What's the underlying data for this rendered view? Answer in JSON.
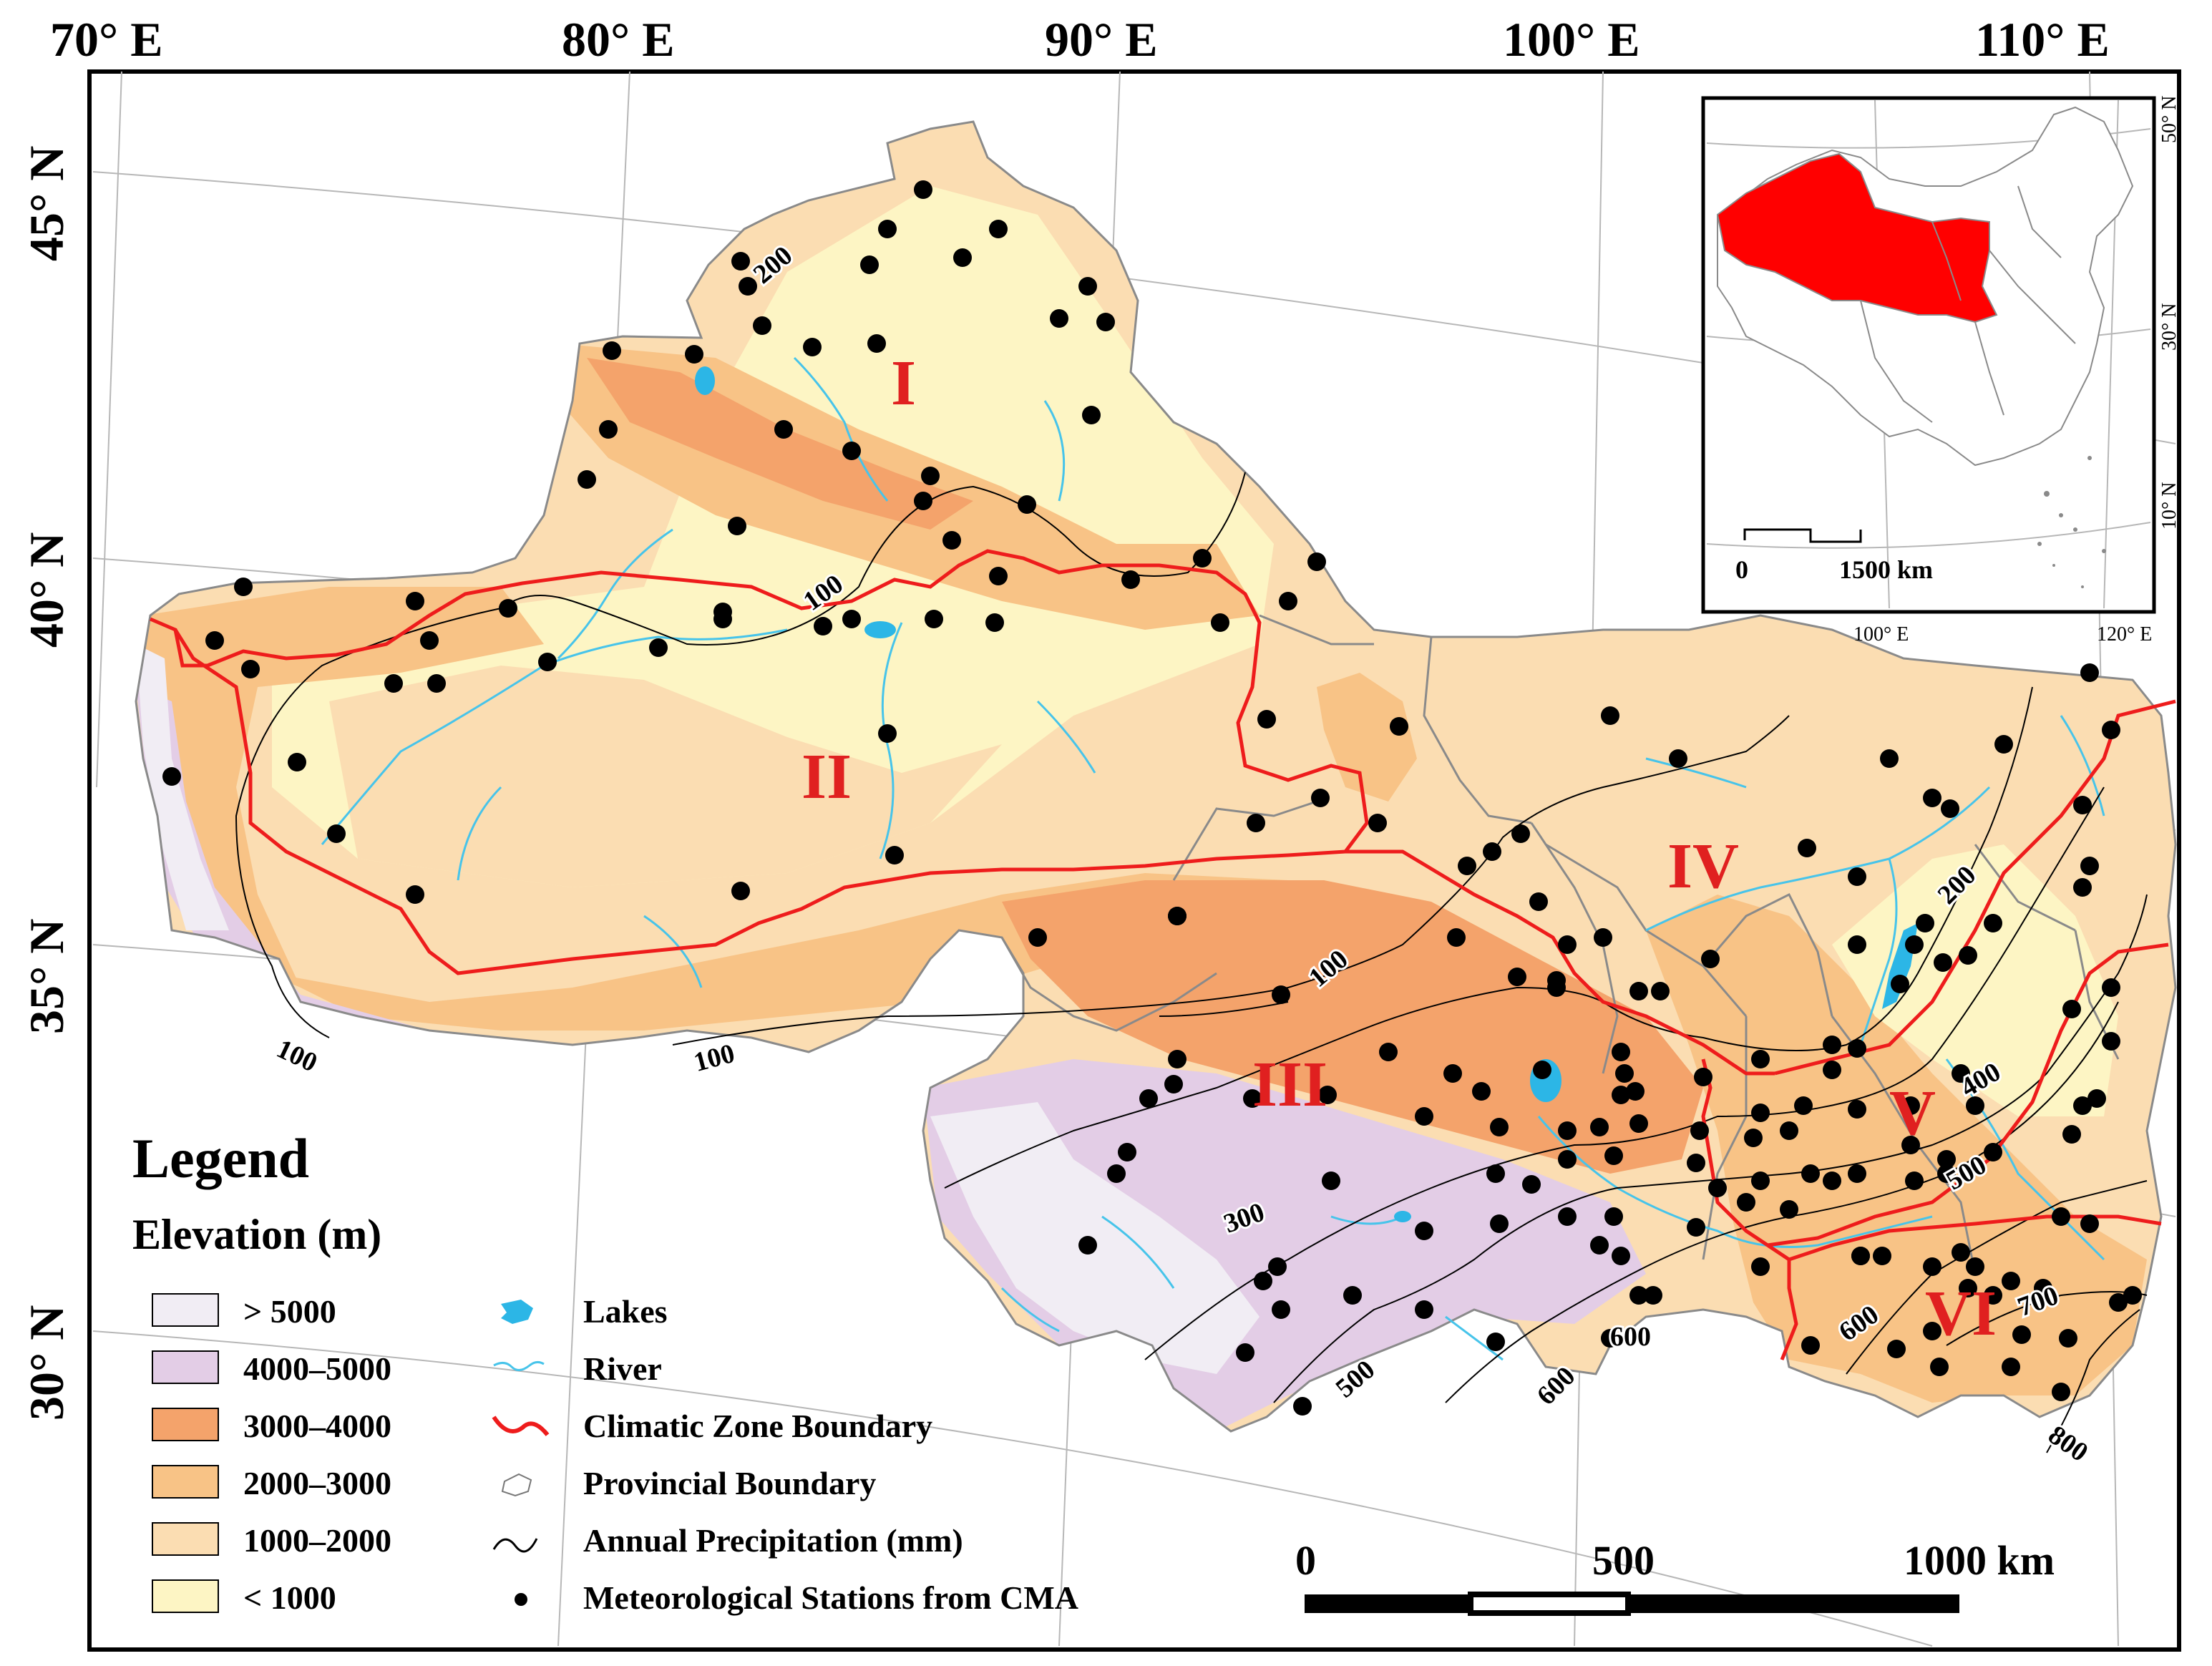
{
  "colors": {
    "gt5000": "#f1edf4",
    "e4000_5000": "#e3cde6",
    "e3000_4000": "#f4a36b",
    "e2000_3000": "#f8c386",
    "e1000_2000": "#fbddb2",
    "lt1000": "#fdf5c4",
    "lake": "#2cb6e6",
    "river": "#47c4ea",
    "zone_boundary": "#ee1c1c",
    "zone_label": "#e02020"
  },
  "top_lon_labels": [
    "70° E",
    "80° E",
    "90° E",
    "100° E",
    "110° E"
  ],
  "left_lat_labels": [
    "45° N",
    "40° N",
    "35° N",
    "30° N"
  ],
  "zone_labels": [
    "I",
    "II",
    "III",
    "IV",
    "V",
    "VI"
  ],
  "isohyet_labels": [
    "200",
    "100",
    "100",
    "100",
    "100",
    "200",
    "300",
    "400",
    "500",
    "500",
    "600",
    "600",
    "600",
    "700",
    "800"
  ],
  "legend": {
    "title": "Legend",
    "elevation_title": "Elevation (m)",
    "elevation_classes": [
      "> 5000",
      "4000–5000",
      "3000–4000",
      "2000–3000",
      "1000–2000",
      "< 1000"
    ],
    "symbols": [
      {
        "icon": "lake-icon",
        "label": "Lakes"
      },
      {
        "icon": "river-icon",
        "label": "River"
      },
      {
        "icon": "climatic-zone-boundary-icon",
        "label": "Climatic Zone Boundary"
      },
      {
        "icon": "provincial-boundary-icon",
        "label": "Provincial Boundary"
      },
      {
        "icon": "precipitation-isoline-icon",
        "label": "Annual Precipitation (mm)"
      },
      {
        "icon": "station-dot-icon",
        "label": "Meteorological Stations from CMA"
      }
    ]
  },
  "scale_bar": {
    "labels": [
      "0",
      "500",
      "1000 km"
    ]
  },
  "inset": {
    "lat_labels": [
      "50° N",
      "30° N",
      "10° N"
    ],
    "lon_labels": [
      "100° E",
      "120° E"
    ],
    "scale_labels": [
      "0",
      "1500 km"
    ]
  }
}
